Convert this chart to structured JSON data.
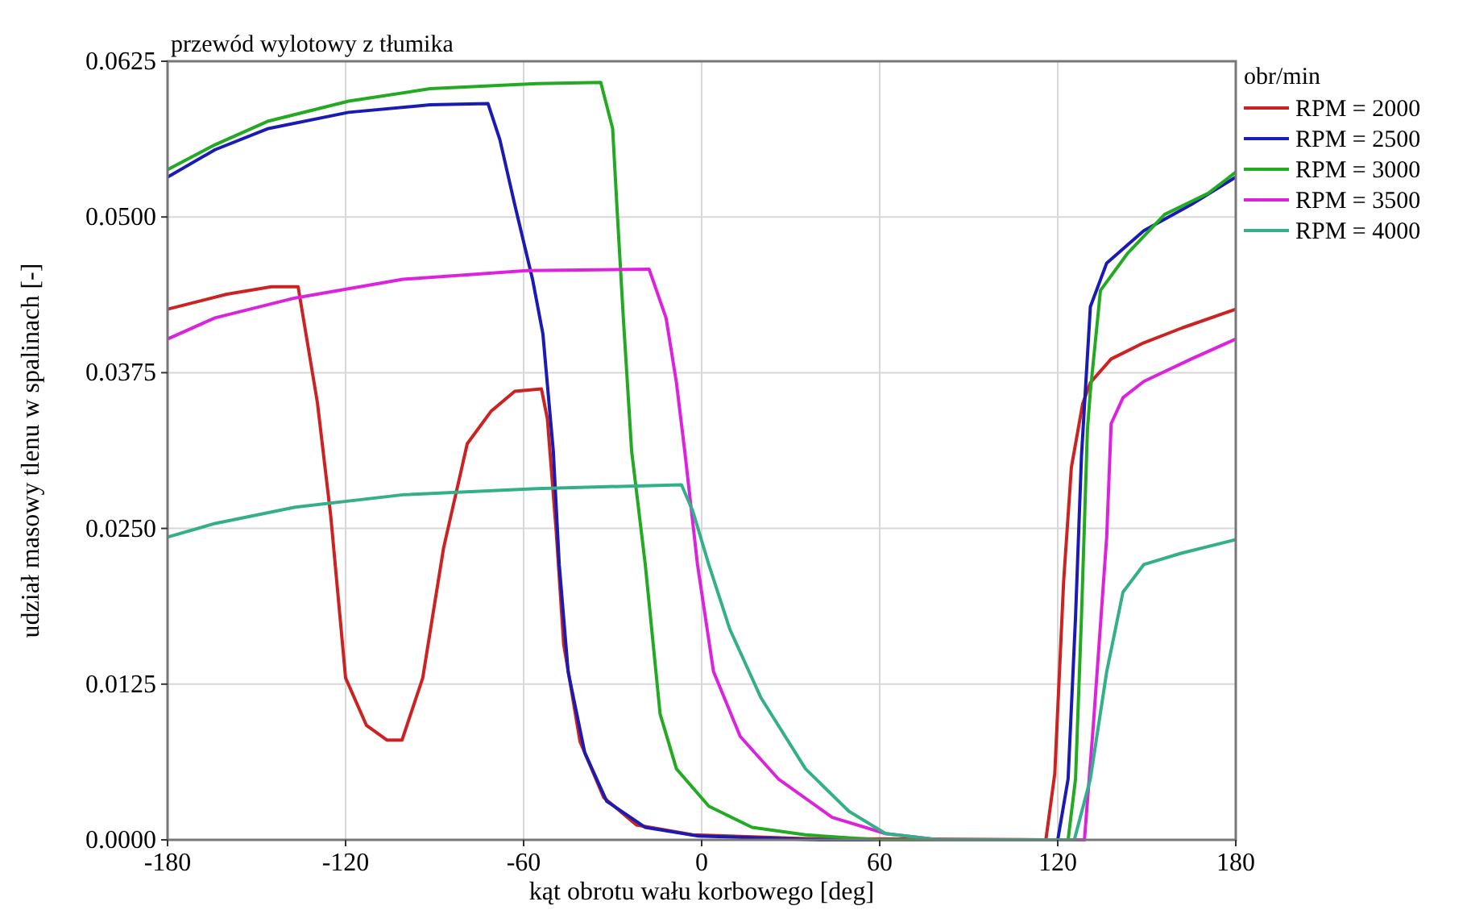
{
  "chart_data": {
    "type": "line",
    "title": "przewód wylotowy z tłumika",
    "xlabel": "kąt obrotu wału korbowego [deg]",
    "ylabel": "udział masowy tlenu w spalinach [-]",
    "legend_title": "obr/min",
    "legend": "top right",
    "grid": true,
    "marker": "none",
    "line_style": "solid",
    "xlim": [
      -180,
      180
    ],
    "xticks": [
      -180,
      -120,
      -60,
      0,
      60,
      120,
      180
    ],
    "ylim": [
      0,
      0.0625
    ],
    "yticks": [
      {
        "value": 0,
        "label": "0.0000"
      },
      {
        "value": 0.0125,
        "label": "0.0125"
      },
      {
        "value": 0.025,
        "label": "0.0250"
      },
      {
        "value": 0.0375,
        "label": "0.0375"
      },
      {
        "value": 0.05,
        "label": "0.0500"
      },
      {
        "value": 0.0625,
        "label": "0.0625"
      }
    ],
    "series": [
      {
        "name": "RPM = 2000",
        "color": "#cc2222",
        "x": [
          -180,
          -160,
          -145,
          -136,
          -129.5,
          -125,
          -120,
          -113,
          -106,
          -101,
          -94,
          -87,
          -79,
          -71,
          -63,
          -54,
          -52,
          -49,
          -46.5,
          -41,
          -33,
          -22,
          -3,
          35,
          116,
          119,
          122,
          124.6,
          128.4,
          131,
          138,
          149,
          162,
          180
        ],
        "values": [
          0.0426,
          0.0438,
          0.0444,
          0.0444,
          0.0351,
          0.026,
          0.013,
          0.0092,
          0.008,
          0.008,
          0.013,
          0.0234,
          0.0318,
          0.0344,
          0.036,
          0.0362,
          0.0338,
          0.0247,
          0.0157,
          0.0079,
          0.0034,
          0.0012,
          0.0004,
          0.0001,
          0,
          0.0053,
          0.0208,
          0.0299,
          0.035,
          0.0367,
          0.0386,
          0.0399,
          0.0411,
          0.0426
        ]
      },
      {
        "name": "RPM = 2500",
        "color": "#1a1ab4",
        "x": [
          -180,
          -164,
          -146,
          -119,
          -91.5,
          -72,
          -68,
          -63,
          -57,
          -53.5,
          -50,
          -48,
          -45,
          -39.4,
          -32,
          -19,
          -1,
          40,
          120,
          123.5,
          126,
          128,
          131,
          136.5,
          149,
          165,
          180
        ],
        "values": [
          0.0532,
          0.0554,
          0.0571,
          0.0584,
          0.059,
          0.0591,
          0.0562,
          0.051,
          0.045,
          0.0406,
          0.0312,
          0.0221,
          0.0135,
          0.007,
          0.0031,
          0.001,
          0.0003,
          0,
          0,
          0.0049,
          0.0179,
          0.0308,
          0.0428,
          0.0463,
          0.0489,
          0.051,
          0.0532
        ]
      },
      {
        "name": "RPM = 3000",
        "color": "#22aa22",
        "x": [
          -180,
          -164,
          -146,
          -119,
          -91.5,
          -55.7,
          -34,
          -30,
          -28.5,
          -26.4,
          -23.6,
          -19,
          -14,
          -8.5,
          2.4,
          17,
          35,
          60,
          123.5,
          126,
          128,
          130,
          131,
          134.4,
          143.6,
          156,
          170.7,
          180
        ],
        "values": [
          0.0538,
          0.0558,
          0.0577,
          0.0593,
          0.0603,
          0.0607,
          0.0608,
          0.0571,
          0.0506,
          0.0419,
          0.0312,
          0.0221,
          0.0101,
          0.0057,
          0.0027,
          0.001,
          0.0004,
          0,
          0,
          0.0049,
          0.0179,
          0.0329,
          0.036,
          0.0441,
          0.0471,
          0.0502,
          0.0519,
          0.0536
        ]
      },
      {
        "name": "RPM = 3500",
        "color": "#dd22dd",
        "x": [
          -180,
          -164,
          -137,
          -100.7,
          -59,
          -17.7,
          -12,
          -8.5,
          -5.7,
          -1.4,
          4,
          13,
          25.8,
          44,
          62,
          80,
          129,
          132,
          136.5,
          138,
          142,
          149,
          165,
          180
        ],
        "values": [
          0.0402,
          0.0419,
          0.0435,
          0.045,
          0.0457,
          0.0458,
          0.0419,
          0.0367,
          0.0312,
          0.0221,
          0.0135,
          0.0083,
          0.0049,
          0.0018,
          0.0005,
          0,
          0,
          0.0092,
          0.0243,
          0.0334,
          0.0355,
          0.0368,
          0.0386,
          0.0402
        ]
      },
      {
        "name": "RPM = 4000",
        "color": "#33b08a",
        "x": [
          -180,
          -164,
          -137,
          -100.7,
          -55.7,
          -6.8,
          -3,
          2.4,
          9.5,
          20,
          35,
          49.6,
          62,
          80,
          125.6,
          131,
          136.5,
          142,
          149,
          161.5,
          180
        ],
        "values": [
          0.0243,
          0.0254,
          0.0267,
          0.0277,
          0.0282,
          0.0285,
          0.0264,
          0.0221,
          0.0169,
          0.0114,
          0.0057,
          0.0023,
          0.0005,
          0,
          0,
          0.0049,
          0.0135,
          0.0199,
          0.0221,
          0.023,
          0.0241
        ]
      }
    ]
  }
}
